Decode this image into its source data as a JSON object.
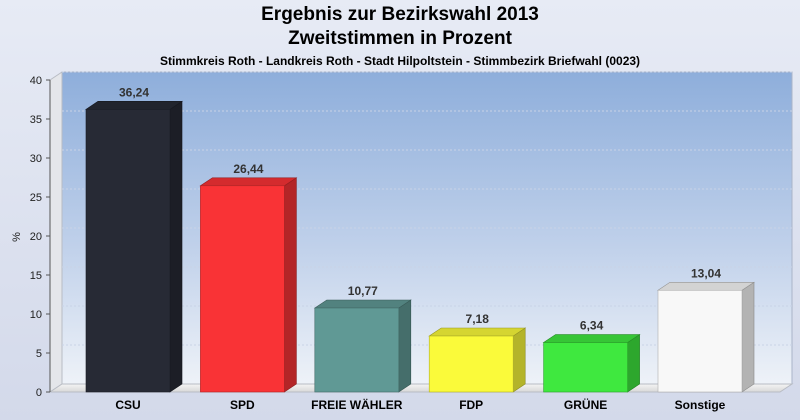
{
  "chart_data": {
    "type": "bar",
    "title": "Ergebnis zur Bezirkswahl 2013",
    "title2": "Zweitstimmen in Prozent",
    "subtitle": "Stimmkreis Roth - Landkreis Roth - Stadt Hilpoltstein - Stimmbezirk Briefwahl (0023)",
    "ylabel": "%",
    "ylim": [
      0,
      40
    ],
    "yticks": [
      0,
      5,
      10,
      15,
      20,
      25,
      30,
      35,
      40
    ],
    "grid": true,
    "categories": [
      "CSU",
      "SPD",
      "FREIE WÄHLER",
      "FDP",
      "GRÜNE",
      "Sonstige"
    ],
    "values": [
      36.24,
      26.44,
      10.77,
      7.18,
      6.34,
      13.04
    ],
    "value_labels": [
      "36,24",
      "26,44",
      "10,77",
      "7,18",
      "6,34",
      "13,04"
    ],
    "colors": [
      "#272a35",
      "#f93336",
      "#609995",
      "#fafa3a",
      "#3fe83f",
      "#f8f8f8"
    ]
  }
}
